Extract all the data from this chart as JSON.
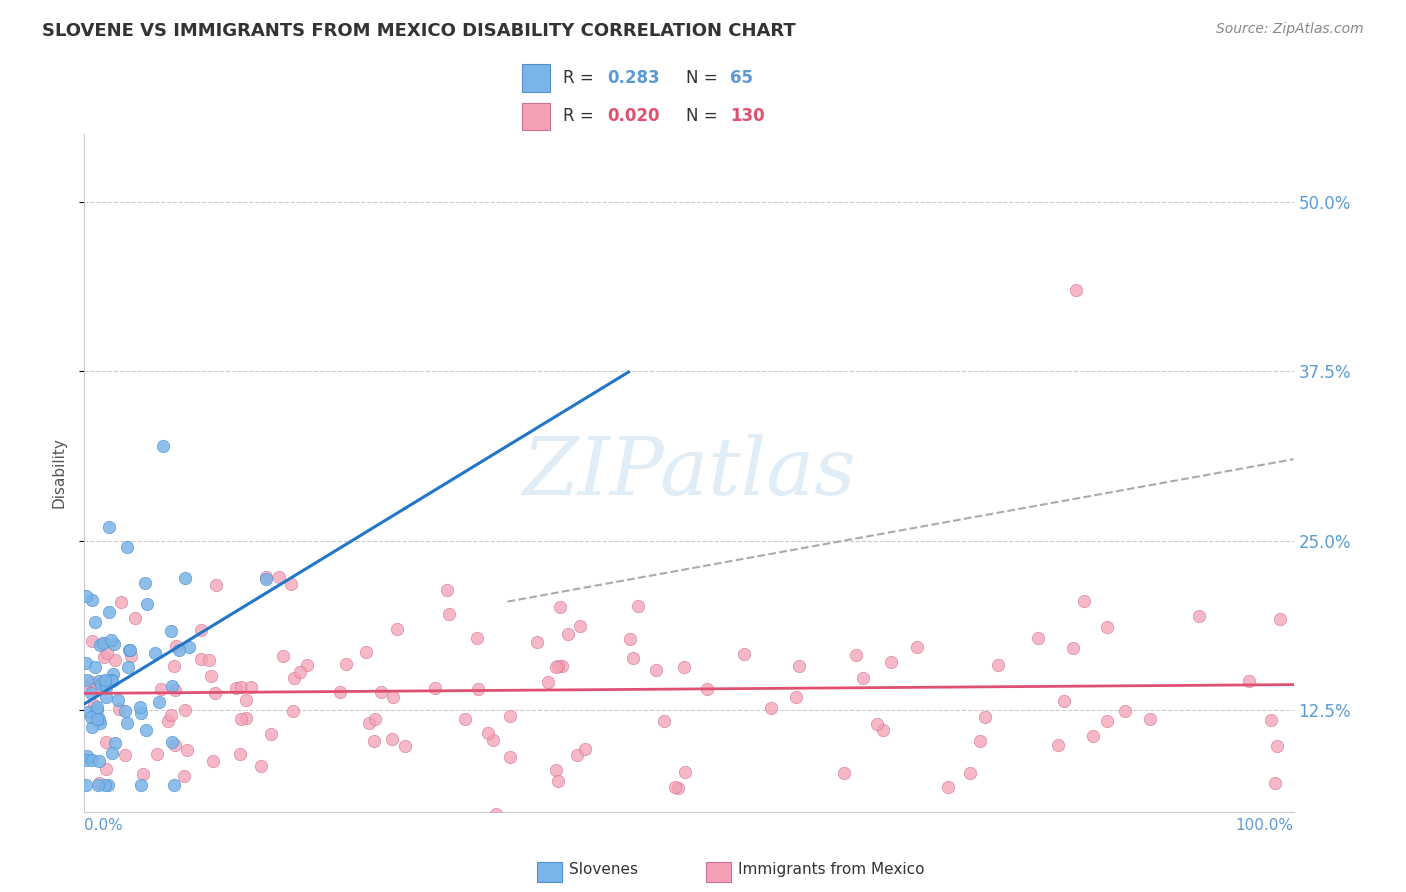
{
  "title": "SLOVENE VS IMMIGRANTS FROM MEXICO DISABILITY CORRELATION CHART",
  "source_text": "Source: ZipAtlas.com",
  "ylabel": "Disability",
  "ytick_labels": [
    "12.5%",
    "25.0%",
    "37.5%",
    "50.0%"
  ],
  "ytick_values": [
    0.125,
    0.25,
    0.375,
    0.5
  ],
  "xlim": [
    0.0,
    1.0
  ],
  "ylim": [
    0.05,
    0.55
  ],
  "background_color": "#ffffff",
  "grid_color": "#cccccc",
  "slovene_color": "#7ab4e8",
  "slovene_edge": "#5090cc",
  "mexico_color": "#f4a0b5",
  "mexico_edge": "#d07090",
  "slovene_line_color": "#2176c7",
  "mexico_line_color": "#e05070",
  "trend_line_color": "#aaaaaa",
  "legend_R_color_blue": "#5b9bd5",
  "legend_R_color_pink": "#e05070",
  "legend_N_color": "#5b9bd5",
  "ytick_color": "#5b9bd5",
  "xlabel_color": "#5b9bd5",
  "watermark_text": "ZIPatlas",
  "watermark_color": "#c8dff0",
  "slovene_R": "0.283",
  "slovene_N": "65",
  "mexico_R": "0.020",
  "mexico_N": "130"
}
